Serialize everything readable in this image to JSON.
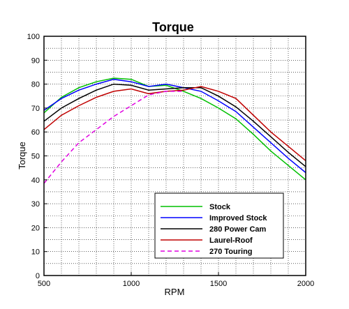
{
  "chart_data": {
    "type": "line",
    "title": "Torque",
    "xlabel": "RPM",
    "ylabel": "Torque",
    "xlim": [
      500,
      2000
    ],
    "ylim": [
      0,
      100
    ],
    "x_ticks": [
      500,
      1000,
      1500,
      2000
    ],
    "y_ticks": [
      0,
      10,
      20,
      30,
      40,
      50,
      60,
      70,
      80,
      90,
      100
    ],
    "grid": true,
    "legend_position": "bottom-right",
    "series": [
      {
        "name": "Stock",
        "color": "#00c000",
        "dash": false,
        "x": [
          500,
          600,
          700,
          800,
          900,
          1000,
          1100,
          1200,
          1300,
          1400,
          1500,
          1600,
          1700,
          1800,
          1900,
          2000
        ],
        "y": [
          68,
          74.5,
          78.5,
          81,
          82.5,
          82,
          79,
          79.5,
          77,
          74,
          70,
          65.5,
          59,
          52,
          46,
          40
        ]
      },
      {
        "name": "Improved Stock",
        "color": "#0000ff",
        "dash": false,
        "x": [
          500,
          600,
          700,
          800,
          900,
          1000,
          1100,
          1200,
          1300,
          1400,
          1500,
          1600,
          1700,
          1800,
          1900,
          2000
        ],
        "y": [
          69,
          74,
          77.5,
          80,
          82,
          81,
          79,
          80,
          78.5,
          77,
          73,
          68.5,
          62,
          55.5,
          49,
          43
        ]
      },
      {
        "name": "280 Power Cam",
        "color": "#000000",
        "dash": false,
        "x": [
          500,
          600,
          700,
          800,
          900,
          1000,
          1100,
          1200,
          1300,
          1400,
          1500,
          1600,
          1700,
          1800,
          1900,
          2000
        ],
        "y": [
          64.5,
          70,
          74,
          77.5,
          80,
          79.5,
          77.5,
          78,
          78.5,
          78.5,
          75,
          70.5,
          64.5,
          58,
          51.5,
          45.5
        ]
      },
      {
        "name": "Laurel-Roof",
        "color": "#c00000",
        "dash": false,
        "x": [
          500,
          600,
          700,
          800,
          900,
          1000,
          1100,
          1200,
          1300,
          1400,
          1500,
          1600,
          1700,
          1800,
          1900,
          2000
        ],
        "y": [
          61,
          67,
          71,
          74.5,
          77,
          78,
          76,
          77,
          77.5,
          79,
          77,
          74,
          67,
          60,
          54,
          48
        ]
      },
      {
        "name": "270 Touring",
        "color": "#e000e0",
        "dash": true,
        "x": [
          500,
          600,
          700,
          800,
          900,
          1000,
          1100,
          1200,
          1300
        ],
        "y": [
          38.5,
          47.5,
          55.5,
          61,
          66.5,
          71,
          75.5,
          77,
          77
        ]
      }
    ]
  }
}
